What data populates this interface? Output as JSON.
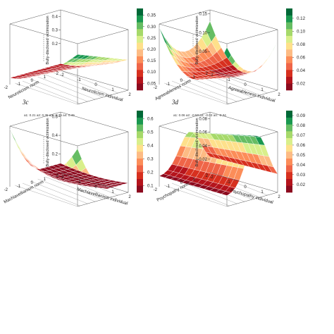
{
  "chart_data": [
    {
      "id": "3a",
      "type": "surface3d",
      "panel_label": "",
      "coefficients": "",
      "zlabel": "Bully-disclosed victimization",
      "xlabel": "Neuroticism individual",
      "ylabel": "Neuroticism norm",
      "x_ticks": [
        "-2",
        "-1",
        "0",
        "1",
        "2"
      ],
      "y_ticks": [
        "-2",
        "-1",
        "0",
        "1",
        "2"
      ],
      "z_ticks": [
        "0.2",
        "0.3",
        "0.4"
      ],
      "zlim": [
        0.0,
        0.45
      ],
      "colorbar_ticks": [
        "0.35",
        "0.30",
        "0.25",
        "0.20",
        "0.15",
        "0.10",
        "0.05"
      ],
      "colorbar_values": [
        0.35,
        0.3,
        0.25,
        0.2,
        0.15,
        0.1,
        0.05
      ],
      "colorbar_range": [
        0.02,
        0.38
      ],
      "colors": [
        "#8c0a1e",
        "#b5141c",
        "#d7301f",
        "#ef6548",
        "#fc8d59",
        "#fdbb84",
        "#fee08b",
        "#d9ef8b",
        "#a6d96a",
        "#66bd63",
        "#1a9850",
        "#006837"
      ],
      "surface_shape": "rising-diagonal"
    },
    {
      "id": "3b",
      "type": "surface3d",
      "panel_label": "",
      "coefficients": "",
      "zlabel": "Bully-disclosed victimization",
      "xlabel": "Agreeableness individual",
      "ylabel": "Agreeableness norm",
      "x_ticks": [
        "-2",
        "-1",
        "0",
        "1",
        "2"
      ],
      "y_ticks": [
        "-2",
        "-1",
        "0",
        "1",
        "2"
      ],
      "z_ticks": [
        "0.05",
        "0.10",
        "0.15"
      ],
      "zlim": [
        0.0,
        0.16
      ],
      "colorbar_ticks": [
        "0.12",
        "0.10",
        "0.08",
        "0.06",
        "0.04",
        "0.02"
      ],
      "colorbar_values": [
        0.12,
        0.1,
        0.08,
        0.06,
        0.04,
        0.02
      ],
      "colorbar_range": [
        0.01,
        0.135
      ],
      "colors": [
        "#8c0a1e",
        "#b5141c",
        "#d7301f",
        "#ef6548",
        "#fc8d59",
        "#fdbb84",
        "#fee08b",
        "#d9ef8b",
        "#a6d96a",
        "#66bd63",
        "#1a9850",
        "#006837"
      ],
      "surface_shape": "saddle"
    },
    {
      "id": "3c",
      "type": "surface3d",
      "panel_label": "3c",
      "coefficients": "a1: 0.21    a2: 0.35    a3: -0.35    a4: 0.46",
      "zlabel": "Bully-disclosed victimization",
      "xlabel": "Machiavellianism individual",
      "ylabel": "Machiavellianism norm",
      "x_ticks": [
        "-2",
        "-1",
        "0",
        "1",
        "2"
      ],
      "y_ticks": [
        "-2",
        "-1",
        "0",
        "1",
        "2"
      ],
      "z_ticks": [
        "0.2",
        "0.4",
        "0.6"
      ],
      "zlim": [
        0.0,
        0.65
      ],
      "colorbar_ticks": [
        "0.6",
        "0.5",
        "0.4",
        "0.3",
        "0.2",
        "0.1"
      ],
      "colorbar_values": [
        0.6,
        0.5,
        0.4,
        0.3,
        0.2,
        0.1
      ],
      "colorbar_range": [
        0.05,
        0.66
      ],
      "colors": [
        "#8c0a1e",
        "#b5141c",
        "#d7301f",
        "#ef6548",
        "#fc8d59",
        "#fdbb84",
        "#fee08b",
        "#d9ef8b",
        "#a6d96a",
        "#66bd63",
        "#1a9850",
        "#006837"
      ],
      "surface_shape": "bowl"
    },
    {
      "id": "3d",
      "type": "surface3d",
      "panel_label": "3d",
      "coefficients": "a1: 0.06    a2: -0.50    a3: -0.03    a4: -0.34",
      "zlabel": "Bully-disclosed victimization",
      "xlabel": "Psychopathy individual",
      "ylabel": "Psychopathy norm",
      "x_ticks": [
        "-2",
        "-1",
        "0",
        "1",
        "2"
      ],
      "y_ticks": [
        "-2",
        "-1",
        "0",
        "1",
        "2"
      ],
      "z_ticks": [
        "0.02",
        "0.04",
        "0.06",
        "0.08"
      ],
      "zlim": [
        0.0,
        0.09
      ],
      "colorbar_ticks": [
        "0.09",
        "0.08",
        "0.07",
        "0.06",
        "0.05",
        "0.04",
        "0.03",
        "0.02"
      ],
      "colorbar_values": [
        0.09,
        0.08,
        0.07,
        0.06,
        0.05,
        0.04,
        0.03,
        0.02
      ],
      "colorbar_range": [
        0.012,
        0.095
      ],
      "colors": [
        "#8c0a1e",
        "#b5141c",
        "#d7301f",
        "#ef6548",
        "#fc8d59",
        "#fdbb84",
        "#fee08b",
        "#d9ef8b",
        "#a6d96a",
        "#66bd63",
        "#1a9850",
        "#006837"
      ],
      "surface_shape": "ridge"
    }
  ]
}
